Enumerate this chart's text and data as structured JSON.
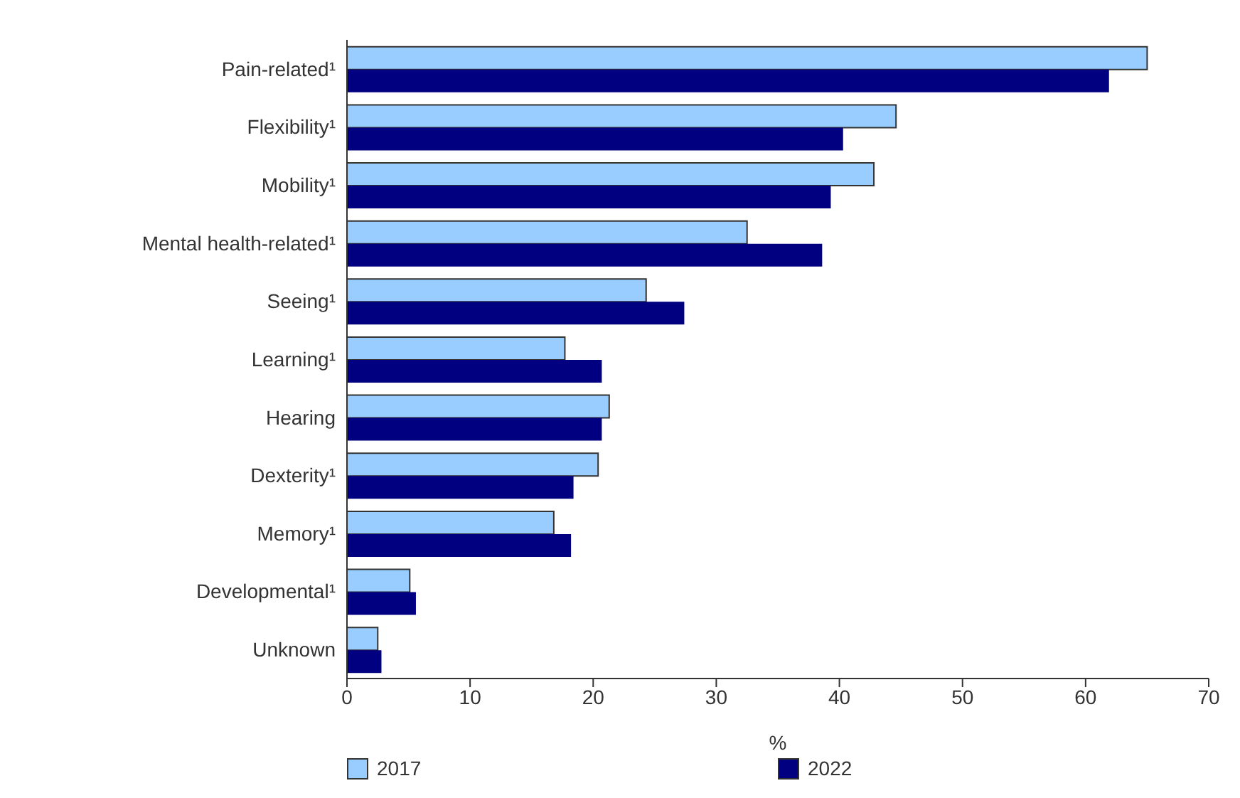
{
  "chart_data": {
    "type": "bar",
    "orientation": "horizontal",
    "xlabel": "%",
    "categories": [
      "Pain-related¹",
      "Flexibility¹",
      "Mobility¹",
      "Mental health-related¹",
      "Seeing¹",
      "Learning¹",
      "Hearing",
      "Dexterity¹",
      "Memory¹",
      "Developmental¹",
      "Unknown"
    ],
    "series": [
      {
        "name": "2017",
        "color": "#99ccff",
        "values": [
          65.0,
          44.6,
          42.8,
          32.5,
          24.3,
          17.7,
          21.3,
          20.4,
          16.8,
          5.1,
          2.5
        ]
      },
      {
        "name": "2022",
        "color": "#000080",
        "values": [
          61.9,
          40.3,
          39.3,
          38.6,
          27.4,
          20.7,
          20.7,
          18.4,
          18.2,
          5.6,
          2.8
        ]
      }
    ],
    "xlim": [
      0,
      70
    ],
    "xticks": [
      0,
      10,
      20,
      30,
      40,
      50,
      60,
      70
    ],
    "grid": false,
    "legend": "bottom"
  }
}
